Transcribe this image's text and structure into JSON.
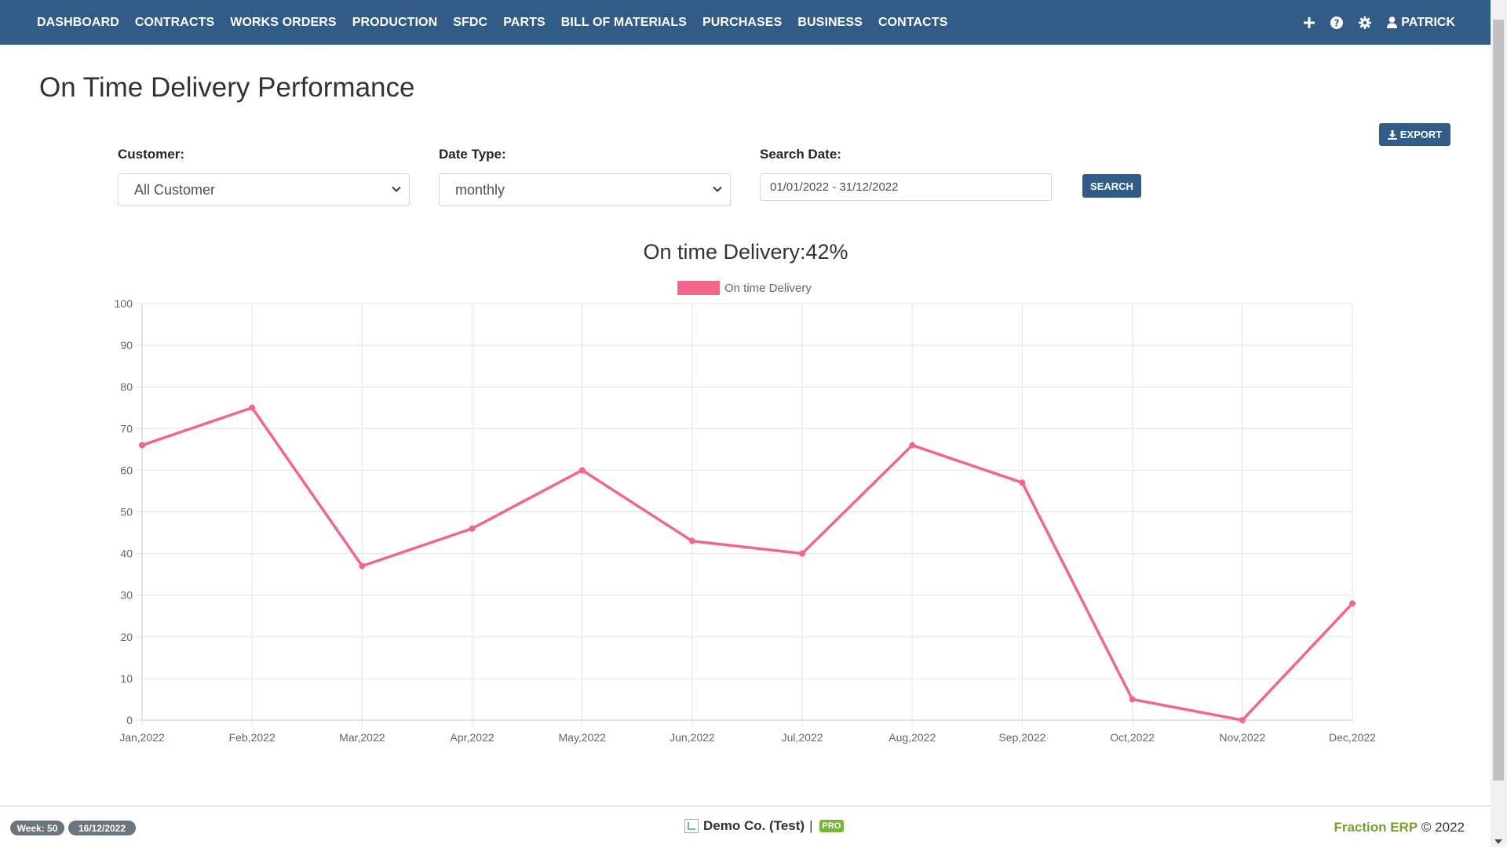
{
  "nav": {
    "items": [
      "DASHBOARD",
      "CONTRACTS",
      "WORKS ORDERS",
      "PRODUCTION",
      "SFDC",
      "PARTS",
      "BILL OF MATERIALS",
      "PURCHASES",
      "BUSINESS",
      "CONTACTS"
    ],
    "icons": [
      "plus-icon",
      "question-circle-icon",
      "gear-icon",
      "user-icon"
    ],
    "user_name": "PATRICK"
  },
  "page": {
    "title": "On Time Delivery Performance"
  },
  "toolbar": {
    "export_label": "EXPORT",
    "search_label": "SEARCH"
  },
  "filters": {
    "customer": {
      "label": "Customer:",
      "value": "All Customer"
    },
    "date_type": {
      "label": "Date Type:",
      "value": "monthly"
    },
    "search_date": {
      "label": "Search Date:",
      "value": "01/01/2022 - 31/12/2022"
    }
  },
  "chart_data": {
    "type": "line",
    "title": "On time Delivery:42%",
    "categories": [
      "Jan,2022",
      "Feb,2022",
      "Mar,2022",
      "Apr,2022",
      "May,2022",
      "Jun,2022",
      "Jul,2022",
      "Aug,2022",
      "Sep,2022",
      "Oct,2022",
      "Nov,2022",
      "Dec,2022"
    ],
    "series": [
      {
        "name": "On time Delivery",
        "values": [
          66,
          75,
          37,
          46,
          60,
          43,
          40,
          66,
          57,
          5,
          0,
          28
        ],
        "color": "#f2668b"
      }
    ],
    "ylim": [
      0,
      100
    ],
    "yticks": [
      0,
      10,
      20,
      30,
      40,
      50,
      60,
      70,
      80,
      90,
      100
    ],
    "grid": true,
    "legend_position": "top-center"
  },
  "footer": {
    "week_badge": "Week: 50",
    "date_badge": "16/12/2022",
    "company": "Demo Co. (Test)",
    "separator": "|",
    "pro_badge": "PRO",
    "brand_name": "Fraction ERP",
    "copyright": "© 2022"
  }
}
